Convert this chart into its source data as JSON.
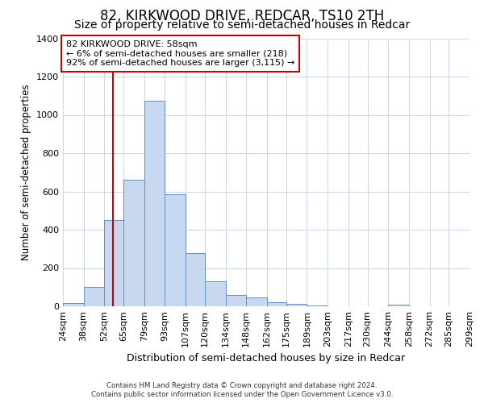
{
  "title": "82, KIRKWOOD DRIVE, REDCAR, TS10 2TH",
  "subtitle": "Size of property relative to semi-detached houses in Redcar",
  "xlabel": "Distribution of semi-detached houses by size in Redcar",
  "ylabel": "Number of semi-detached properties",
  "bar_edges": [
    24,
    38,
    52,
    65,
    79,
    93,
    107,
    120,
    134,
    148,
    162,
    175,
    189,
    203,
    217,
    230,
    244,
    258,
    272,
    285,
    299
  ],
  "bar_heights": [
    15,
    100,
    450,
    660,
    1075,
    585,
    280,
    130,
    60,
    45,
    20,
    13,
    5,
    0,
    0,
    0,
    10,
    0,
    0,
    0
  ],
  "bar_color": "#c8d8f0",
  "bar_edgecolor": "#6090c0",
  "vline_x": 58,
  "vline_color": "#cc0000",
  "ylim": [
    0,
    1400
  ],
  "yticks": [
    0,
    200,
    400,
    600,
    800,
    1000,
    1200,
    1400
  ],
  "xtick_labels": [
    "24sqm",
    "38sqm",
    "52sqm",
    "65sqm",
    "79sqm",
    "93sqm",
    "107sqm",
    "120sqm",
    "134sqm",
    "148sqm",
    "162sqm",
    "175sqm",
    "189sqm",
    "203sqm",
    "217sqm",
    "230sqm",
    "244sqm",
    "258sqm",
    "272sqm",
    "285sqm",
    "299sqm"
  ],
  "annotation_title": "82 KIRKWOOD DRIVE: 58sqm",
  "annotation_line1": "← 6% of semi-detached houses are smaller (218)",
  "annotation_line2": "92% of semi-detached houses are larger (3,115) →",
  "annotation_box_color": "#ffffff",
  "annotation_box_edgecolor": "#cc0000",
  "footer1": "Contains HM Land Registry data © Crown copyright and database right 2024.",
  "footer2": "Contains public sector information licensed under the Open Government Licence v3.0.",
  "background_color": "#ffffff",
  "grid_color": "#c8d4e8",
  "title_fontsize": 12,
  "subtitle_fontsize": 10
}
